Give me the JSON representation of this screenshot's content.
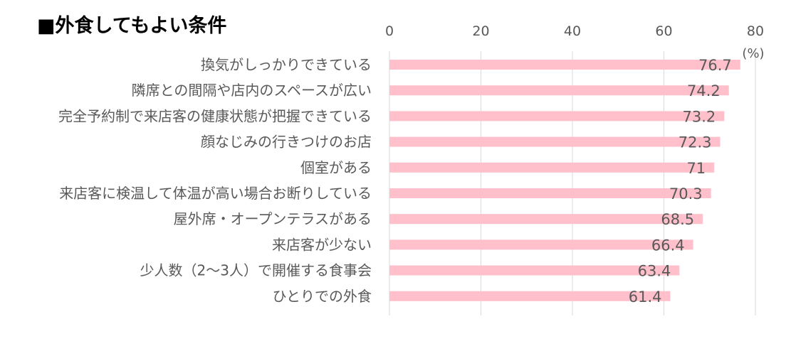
{
  "chart_data": {
    "type": "bar",
    "orientation": "horizontal",
    "title": "■外食してもよい条件",
    "unit": "(%)",
    "xlim": [
      0,
      80
    ],
    "ticks": [
      0,
      20,
      40,
      60,
      80
    ],
    "grid": true,
    "bar_color": "#ffc0cb",
    "categories": [
      "換気がしっかりできている",
      "隣席との間隔や店内のスペースが広い",
      "完全予約制で来店客の健康状態が把握できている",
      "顔なじみの行きつけのお店",
      "個室がある",
      "来店客に検温して体温が高い場合お断りしている",
      "屋外席・オープンテラスがある",
      "来店客が少ない",
      "少人数（2〜3人）で開催する食事会",
      "ひとりでの外食"
    ],
    "values": [
      76.7,
      74.2,
      73.2,
      72.3,
      71,
      70.3,
      68.5,
      66.4,
      63.4,
      61.4
    ],
    "value_labels": [
      "76.7",
      "74.2",
      "73.2",
      "72.3",
      "71",
      "70.3",
      "68.5",
      "66.4",
      "63.4",
      "61.4"
    ]
  }
}
